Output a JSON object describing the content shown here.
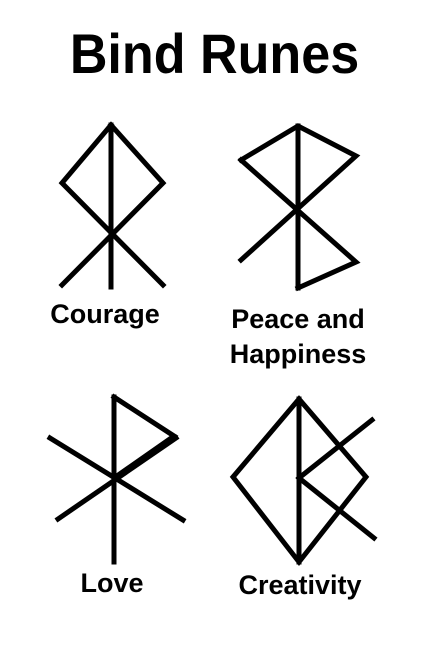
{
  "title": "Bind Runes",
  "runes": [
    {
      "label": "Courage"
    },
    {
      "label_lines": [
        "Peace and",
        "Happiness"
      ]
    },
    {
      "label": "Love"
    },
    {
      "label": "Creativity"
    }
  ],
  "colors": {
    "ink": "#000000",
    "background": "#ffffff"
  }
}
